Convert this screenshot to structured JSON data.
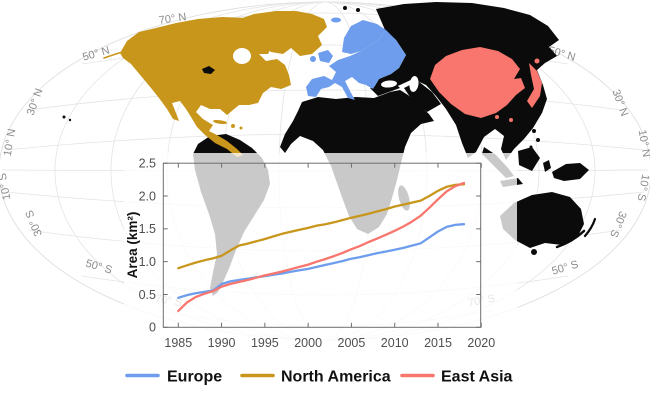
{
  "figure": {
    "kind": "world-map-with-inset-line-chart"
  },
  "map": {
    "lat_labels": {
      "n70": "70° N",
      "n50": "50° N",
      "n30": "30° N",
      "n10": "10° N",
      "s10": "10° S",
      "s30": "30° S",
      "s50": "50° S",
      "s70": "70° S"
    },
    "regions": [
      {
        "id": "europe",
        "name": "Europe",
        "color": "#6D9DEC"
      },
      {
        "id": "north-america",
        "name": "North America",
        "color": "#C9961C"
      },
      {
        "id": "east-asia",
        "name": "East Asia",
        "color": "#F8766D"
      },
      {
        "id": "other-land",
        "name": "Other land",
        "color": "#0b0b0b"
      }
    ],
    "graticule_color": "#e4e4e4",
    "ocean_color": "#ffffff"
  },
  "chart_data": {
    "type": "line",
    "title": "",
    "xlabel": "",
    "ylabel": "Area (km²)",
    "x_ticks": [
      "1985",
      "1990",
      "1995",
      "2000",
      "2005",
      "2010",
      "2015",
      "2020"
    ],
    "y_ticks": [
      "0",
      "0.5",
      "1.0",
      "1.5",
      "2.0",
      "2.5"
    ],
    "xlim": [
      1983.3,
      2020
    ],
    "ylim": [
      0,
      2.5
    ],
    "grid": false,
    "legend_position": "bottom",
    "years": [
      1985,
      1986,
      1987,
      1988,
      1989,
      1990,
      1991,
      1992,
      1993,
      1994,
      1995,
      1996,
      1997,
      1998,
      1999,
      2000,
      2001,
      2002,
      2003,
      2004,
      2005,
      2006,
      2007,
      2008,
      2009,
      2010,
      2011,
      2012,
      2013,
      2014,
      2015,
      2016,
      2017,
      2018
    ],
    "series": [
      {
        "name": "Europe",
        "color": "#6D9DEC",
        "values": [
          0.45,
          0.49,
          0.52,
          0.54,
          0.56,
          0.66,
          0.7,
          0.72,
          0.74,
          0.76,
          0.78,
          0.8,
          0.82,
          0.845,
          0.87,
          0.89,
          0.92,
          0.95,
          0.98,
          1.01,
          1.045,
          1.07,
          1.1,
          1.13,
          1.155,
          1.18,
          1.21,
          1.245,
          1.28,
          1.37,
          1.46,
          1.53,
          1.56,
          1.57
        ]
      },
      {
        "name": "North America",
        "color": "#C9961C",
        "values": [
          0.9,
          0.945,
          0.985,
          1.02,
          1.05,
          1.09,
          1.17,
          1.245,
          1.275,
          1.31,
          1.345,
          1.385,
          1.425,
          1.455,
          1.485,
          1.515,
          1.55,
          1.57,
          1.6,
          1.635,
          1.67,
          1.7,
          1.73,
          1.765,
          1.8,
          1.84,
          1.87,
          1.9,
          1.93,
          2.0,
          2.08,
          2.14,
          2.17,
          2.18
        ]
      },
      {
        "name": "East Asia",
        "color": "#F8766D",
        "values": [
          0.25,
          0.38,
          0.46,
          0.51,
          0.55,
          0.62,
          0.66,
          0.69,
          0.72,
          0.755,
          0.79,
          0.82,
          0.85,
          0.885,
          0.92,
          0.955,
          1.0,
          1.04,
          1.085,
          1.135,
          1.19,
          1.24,
          1.3,
          1.355,
          1.41,
          1.47,
          1.535,
          1.61,
          1.7,
          1.82,
          1.95,
          2.07,
          2.15,
          2.2
        ]
      }
    ]
  },
  "legend": {
    "items": [
      {
        "label": "Europe",
        "color": "#6D9DEC"
      },
      {
        "label": "North America",
        "color": "#C9961C"
      },
      {
        "label": "East Asia",
        "color": "#F8766D"
      }
    ]
  }
}
